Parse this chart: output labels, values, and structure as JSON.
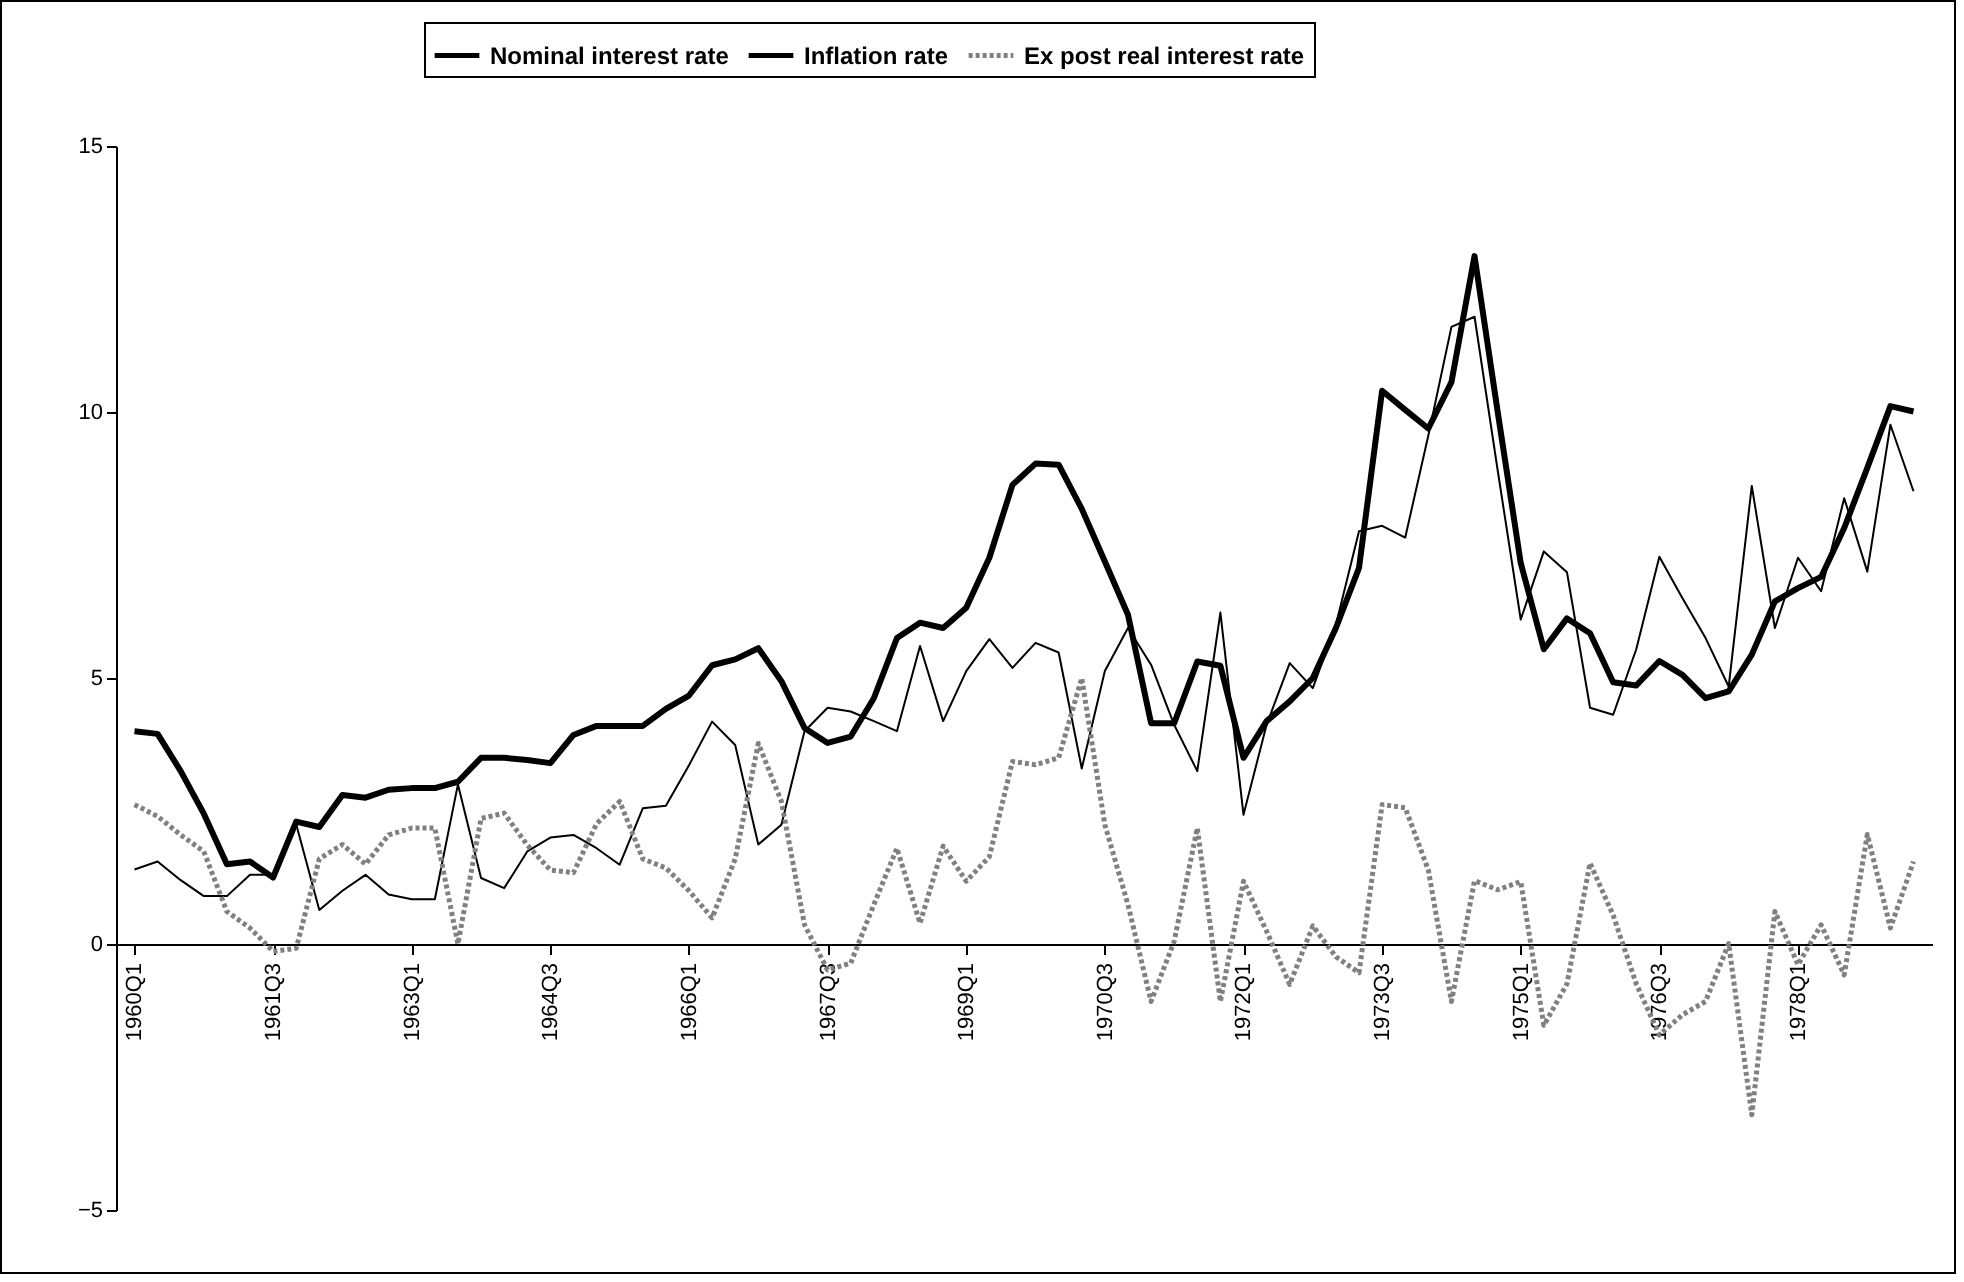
{
  "chart_data": {
    "type": "line",
    "categories": [
      "1960Q1",
      null,
      null,
      null,
      null,
      null,
      "1961Q3",
      null,
      null,
      null,
      null,
      null,
      "1963Q1",
      null,
      null,
      null,
      null,
      null,
      "1964Q3",
      null,
      null,
      null,
      null,
      null,
      "1966Q1",
      null,
      null,
      null,
      null,
      null,
      "1967Q3",
      null,
      null,
      null,
      null,
      null,
      "1969Q1",
      null,
      null,
      null,
      null,
      null,
      "1970Q3",
      null,
      null,
      null,
      null,
      null,
      "1972Q1",
      null,
      null,
      null,
      null,
      null,
      "1973Q3",
      null,
      null,
      null,
      null,
      null,
      "1975Q1",
      null,
      null,
      null,
      null,
      null,
      "1976Q3",
      null,
      null,
      null,
      null,
      null,
      "1978Q1",
      null,
      null,
      null,
      null,
      null
    ],
    "series": [
      {
        "name": "Nominal interest rate",
        "color": "#000000",
        "line_style": "solid",
        "values": [
          4.0,
          3.95,
          3.25,
          2.45,
          1.5,
          1.55,
          1.25,
          2.3,
          2.2,
          2.8,
          2.75,
          2.9,
          2.93,
          2.93,
          3.05,
          3.5,
          3.5,
          3.46,
          3.4,
          3.93,
          4.1,
          4.1,
          4.1,
          4.42,
          4.67,
          5.24,
          5.35,
          5.56,
          4.94,
          4.06,
          3.78,
          3.9,
          4.62,
          5.75,
          6.04,
          5.94,
          6.32,
          7.26,
          8.63,
          9.03,
          9.01,
          8.18,
          7.19,
          6.19,
          4.15,
          4.15,
          5.31,
          5.23,
          3.5,
          4.19,
          4.56,
          5.0,
          5.94,
          7.07,
          10.4,
          10.04,
          9.69,
          10.56,
          12.93,
          10.01,
          7.16,
          5.54,
          6.12,
          5.84,
          4.92,
          4.86,
          5.32,
          5.06,
          4.62,
          4.75,
          5.44,
          6.44,
          6.69,
          6.9,
          7.82,
          8.95,
          10.11,
          10.01
        ]
      },
      {
        "name": "Inflation rate",
        "color": "#000000",
        "line_style": "solid",
        "values": [
          1.4,
          1.55,
          1.2,
          0.9,
          0.9,
          1.3,
          1.3,
          2.25,
          0.64,
          1.0,
          1.3,
          0.93,
          0.84,
          0.84,
          3.0,
          1.24,
          1.05,
          1.74,
          2.0,
          2.05,
          1.8,
          1.49,
          2.55,
          2.6,
          3.36,
          4.18,
          3.74,
          1.87,
          2.24,
          4.0,
          4.44,
          4.37,
          4.19,
          4.0,
          5.6,
          4.19,
          5.13,
          5.73,
          5.19,
          5.66,
          5.48,
          3.3,
          5.13,
          5.94,
          5.25,
          4.12,
          3.25,
          6.23,
          2.43,
          4.12,
          5.28,
          4.81,
          6.0,
          7.76,
          7.86,
          7.64,
          9.56,
          11.6,
          11.79,
          8.91,
          6.1,
          7.38,
          6.99,
          4.44,
          4.31,
          5.54,
          7.28,
          6.5,
          5.75,
          4.84,
          8.61,
          5.94,
          7.26,
          6.63,
          8.38,
          7.0,
          9.76,
          8.51
        ]
      },
      {
        "name": "Ex post real interest rate",
        "color": "#808080",
        "line_style": "dotted",
        "values": [
          2.62,
          2.4,
          2.05,
          1.74,
          0.61,
          0.3,
          -0.14,
          -0.08,
          1.6,
          1.87,
          1.5,
          2.05,
          2.18,
          2.18,
          0.0,
          2.36,
          2.46,
          1.86,
          1.39,
          1.34,
          2.26,
          2.68,
          1.6,
          1.43,
          1.0,
          0.49,
          1.6,
          3.77,
          2.68,
          0.36,
          -0.49,
          -0.36,
          0.74,
          1.8,
          0.39,
          1.84,
          1.18,
          1.64,
          3.43,
          3.37,
          3.5,
          5.0,
          2.24,
          0.74,
          -1.08,
          0.05,
          2.18,
          -1.08,
          1.18,
          0.24,
          -0.76,
          0.34,
          -0.24,
          -0.54,
          2.62,
          2.56,
          1.39,
          -1.08,
          1.19,
          1.02,
          1.17,
          -1.53,
          -0.75,
          1.52,
          0.54,
          -0.75,
          -1.71,
          -1.33,
          -1.08,
          0.01,
          -3.21,
          0.61,
          -0.39,
          0.36,
          -0.58,
          2.06,
          0.3,
          1.55
        ]
      }
    ],
    "ylim": [
      -5,
      15
    ],
    "yticks": [
      -5,
      0,
      5,
      10,
      15
    ],
    "legend": "top"
  }
}
